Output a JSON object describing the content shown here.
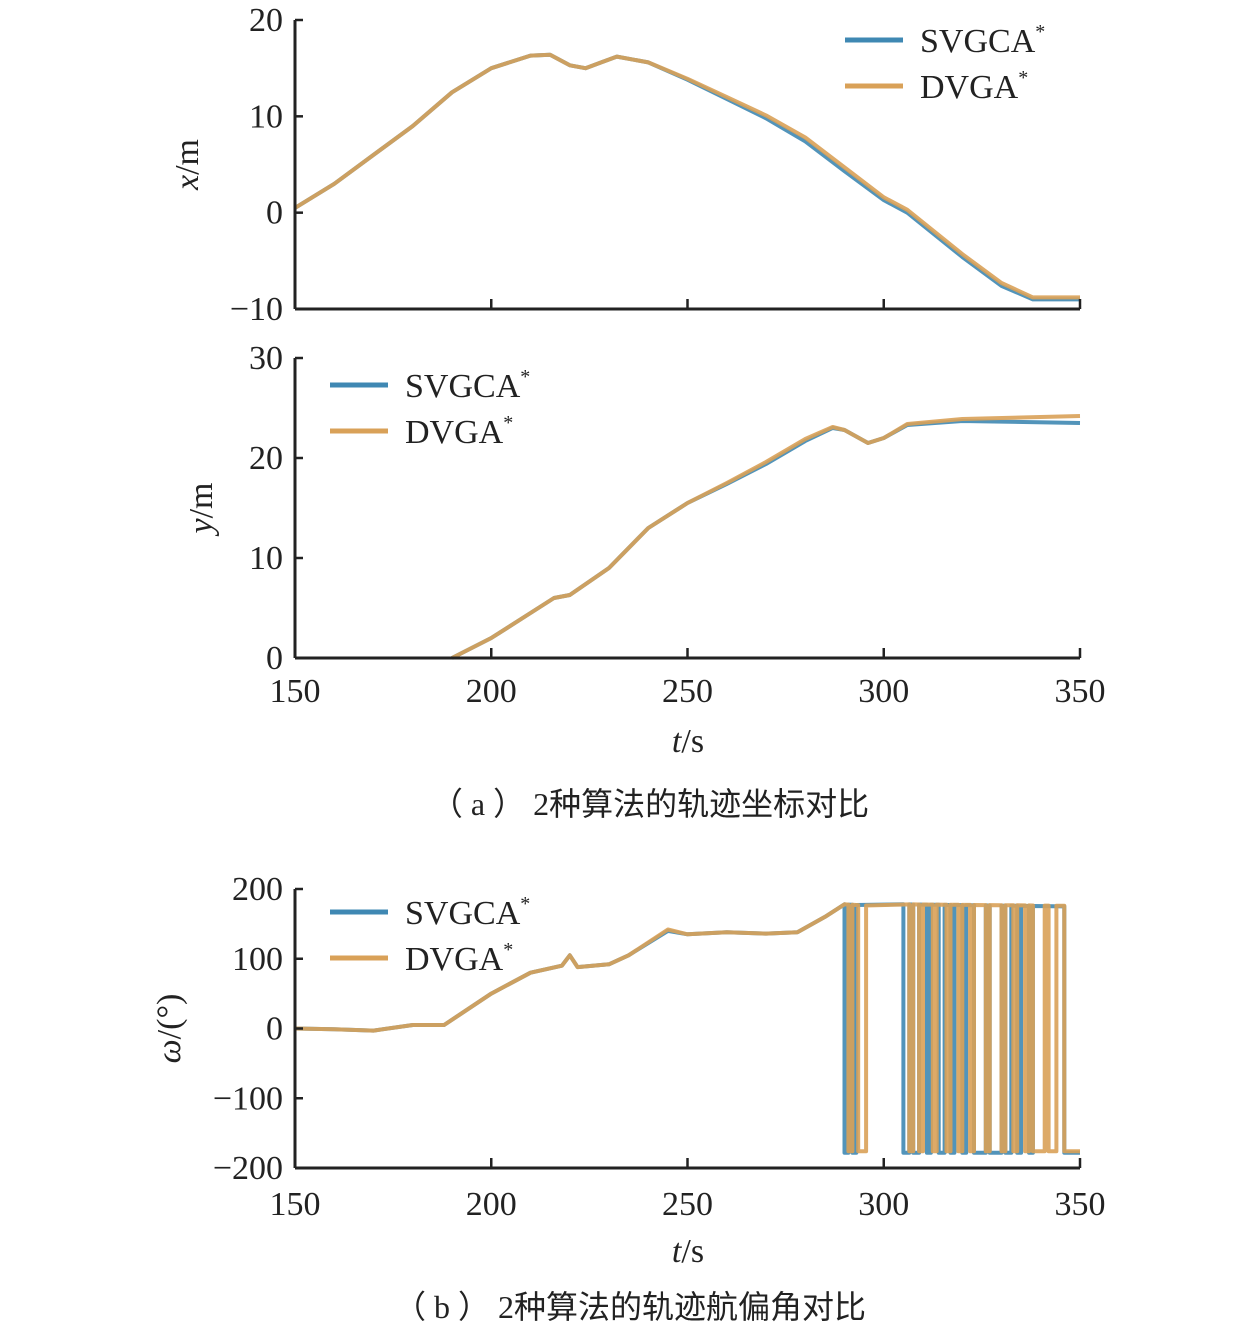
{
  "colors": {
    "SVGCA": "#3f88b3",
    "DVGA": "#d9a158"
  },
  "chart_data": [
    {
      "type": "line",
      "id": "x",
      "ylabel_var": "x",
      "ylabel_unit": "/m",
      "xlim": [
        150,
        350
      ],
      "ylim": [
        -10,
        20
      ],
      "xticks": [
        150,
        200,
        250,
        300,
        350
      ],
      "yticks": [
        -10,
        0,
        10,
        20
      ],
      "ytick_labels": [
        "−10",
        "0",
        "10",
        "20"
      ],
      "legend": [
        "SVGCA*",
        "DVGA*"
      ],
      "legend_position": "top-right",
      "series": [
        {
          "name": "SVGCA*",
          "points": [
            [
              150,
              0.5
            ],
            [
              160,
              3
            ],
            [
              170,
              6
            ],
            [
              180,
              9
            ],
            [
              190,
              12.5
            ],
            [
              200,
              15
            ],
            [
              210,
              16.3
            ],
            [
              215,
              16.4
            ],
            [
              220,
              15.3
            ],
            [
              224,
              15
            ],
            [
              228,
              15.6
            ],
            [
              232,
              16.2
            ],
            [
              240,
              15.6
            ],
            [
              250,
              13.8
            ],
            [
              260,
              11.8
            ],
            [
              270,
              9.8
            ],
            [
              280,
              7.4
            ],
            [
              290,
              4.3
            ],
            [
              300,
              1.3
            ],
            [
              306,
              0
            ],
            [
              320,
              -4.6
            ],
            [
              330,
              -7.6
            ],
            [
              338,
              -9
            ],
            [
              350,
              -9
            ]
          ]
        },
        {
          "name": "DVGA*",
          "points": [
            [
              150,
              0.5
            ],
            [
              160,
              3
            ],
            [
              170,
              6
            ],
            [
              180,
              9
            ],
            [
              190,
              12.5
            ],
            [
              200,
              15
            ],
            [
              210,
              16.3
            ],
            [
              215,
              16.4
            ],
            [
              220,
              15.3
            ],
            [
              224,
              15
            ],
            [
              228,
              15.6
            ],
            [
              232,
              16.2
            ],
            [
              240,
              15.6
            ],
            [
              250,
              13.9
            ],
            [
              260,
              12
            ],
            [
              270,
              10.1
            ],
            [
              280,
              7.8
            ],
            [
              290,
              4.7
            ],
            [
              300,
              1.6
            ],
            [
              306,
              0.3
            ],
            [
              320,
              -4.3
            ],
            [
              330,
              -7.3
            ],
            [
              338,
              -8.8
            ],
            [
              350,
              -8.8
            ]
          ]
        }
      ]
    },
    {
      "type": "line",
      "id": "y",
      "ylabel_var": "y",
      "ylabel_unit": "/m",
      "xlim": [
        150,
        350
      ],
      "ylim": [
        0,
        30
      ],
      "xticks": [
        150,
        200,
        250,
        300,
        350
      ],
      "yticks": [
        0,
        10,
        20,
        30
      ],
      "ytick_labels": [
        "0",
        "10",
        "20",
        "30"
      ],
      "xtick_labels": [
        "150",
        "200",
        "250",
        "300",
        "350"
      ],
      "xlabel_var": "t",
      "xlabel_unit": "/s",
      "legend": [
        "SVGCA*",
        "DVGA*"
      ],
      "legend_position": "top-left",
      "series": [
        {
          "name": "SVGCA*",
          "points": [
            [
              190,
              0
            ],
            [
              200,
              2
            ],
            [
              210,
              4.5
            ],
            [
              216,
              6
            ],
            [
              220,
              6.3
            ],
            [
              230,
              9
            ],
            [
              240,
              13
            ],
            [
              250,
              15.5
            ],
            [
              260,
              17.4
            ],
            [
              270,
              19.4
            ],
            [
              280,
              21.7
            ],
            [
              287,
              23
            ],
            [
              290,
              22.8
            ],
            [
              296,
              21.5
            ],
            [
              300,
              22
            ],
            [
              306,
              23.3
            ],
            [
              320,
              23.7
            ],
            [
              350,
              23.5
            ]
          ]
        },
        {
          "name": "DVGA*",
          "points": [
            [
              190,
              0
            ],
            [
              200,
              2
            ],
            [
              210,
              4.5
            ],
            [
              216,
              6
            ],
            [
              220,
              6.3
            ],
            [
              230,
              9
            ],
            [
              240,
              13
            ],
            [
              250,
              15.5
            ],
            [
              260,
              17.5
            ],
            [
              270,
              19.6
            ],
            [
              280,
              21.9
            ],
            [
              287,
              23.1
            ],
            [
              290,
              22.8
            ],
            [
              296,
              21.5
            ],
            [
              300,
              22
            ],
            [
              306,
              23.4
            ],
            [
              320,
              23.9
            ],
            [
              350,
              24.2
            ]
          ]
        }
      ]
    },
    {
      "type": "line",
      "id": "w",
      "ylabel_var": "ω",
      "ylabel_unit": "/(°)",
      "xlim": [
        150,
        350
      ],
      "ylim": [
        -200,
        200
      ],
      "xticks": [
        150,
        200,
        250,
        300,
        350
      ],
      "yticks": [
        -200,
        -100,
        0,
        100,
        200
      ],
      "ytick_labels": [
        "−200",
        "−100",
        "0",
        "100",
        "200"
      ],
      "xtick_labels": [
        "150",
        "200",
        "250",
        "300",
        "350"
      ],
      "xlabel_var": "t",
      "xlabel_unit": "/s",
      "legend": [
        "SVGCA*",
        "DVGA*"
      ],
      "legend_position": "top-left",
      "series": [
        {
          "name": "SVGCA*",
          "points": [
            [
              150,
              0
            ],
            [
              160,
              -1
            ],
            [
              170,
              -3
            ],
            [
              180,
              5
            ],
            [
              188,
              5
            ],
            [
              200,
              50
            ],
            [
              210,
              80
            ],
            [
              218,
              90
            ],
            [
              220,
              105
            ],
            [
              222,
              88
            ],
            [
              230,
              92
            ],
            [
              235,
              105
            ],
            [
              245,
              140
            ],
            [
              250,
              135
            ],
            [
              260,
              138
            ],
            [
              270,
              136
            ],
            [
              278,
              138
            ],
            [
              285,
              160
            ],
            [
              290,
              178
            ],
            [
              300,
              175
            ],
            [
              305,
              178
            ],
            [
              346,
              175
            ]
          ],
          "wrap_low_intervals": [
            [
              290,
              291
            ],
            [
              292,
              293
            ],
            [
              305,
              306.5
            ],
            [
              307.5,
              309
            ],
            [
              311,
              312
            ],
            [
              314,
              315.5
            ],
            [
              317,
              318
            ],
            [
              320,
              321
            ],
            [
              323,
              326
            ],
            [
              327,
              330
            ],
            [
              331,
              332.5
            ],
            [
              334,
              335
            ],
            [
              337,
              338
            ],
            [
              346,
              350
            ]
          ],
          "wrap_low_value": -178
        },
        {
          "name": "DVGA*",
          "points": [
            [
              150,
              0
            ],
            [
              160,
              -1
            ],
            [
              170,
              -3
            ],
            [
              180,
              5
            ],
            [
              188,
              5
            ],
            [
              200,
              50
            ],
            [
              210,
              80
            ],
            [
              218,
              90
            ],
            [
              220,
              105
            ],
            [
              222,
              88
            ],
            [
              230,
              92
            ],
            [
              235,
              105
            ],
            [
              245,
              142
            ],
            [
              250,
              135
            ],
            [
              260,
              138
            ],
            [
              270,
              136
            ],
            [
              278,
              138
            ],
            [
              285,
              160
            ],
            [
              290,
              178
            ],
            [
              300,
              175
            ],
            [
              305,
              178
            ],
            [
              346,
              176
            ]
          ],
          "wrap_low_intervals": [
            [
              291,
              292
            ],
            [
              293.5,
              295.5
            ],
            [
              306.5,
              307.5
            ],
            [
              309,
              310
            ],
            [
              312.5,
              313.5
            ],
            [
              316,
              317
            ],
            [
              319,
              320
            ],
            [
              322,
              323
            ],
            [
              326,
              327
            ],
            [
              330,
              331
            ],
            [
              333,
              334
            ],
            [
              336,
              337
            ],
            [
              338,
              341
            ],
            [
              342,
              344
            ],
            [
              346,
              350
            ]
          ],
          "wrap_low_value": -176
        }
      ]
    }
  ],
  "captions": {
    "a": "（ a ） 2种算法的轨迹坐标对比",
    "b": "（ b ） 2种算法的轨迹航偏角对比"
  }
}
